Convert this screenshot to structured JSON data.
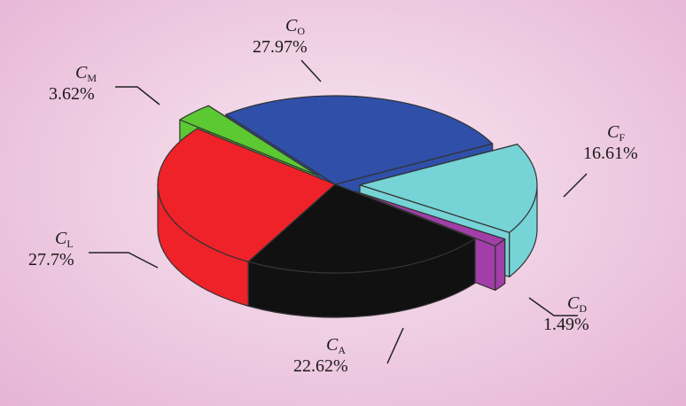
{
  "chart_data": {
    "type": "pie",
    "style": "3d-exploded",
    "title": "",
    "slices": [
      {
        "symbol": "C",
        "subscript": "O",
        "label": "27.97%",
        "value": 27.97,
        "color": "#2f4fa8",
        "exploded": false
      },
      {
        "symbol": "C",
        "subscript": "F",
        "label": "16.61%",
        "value": 16.61,
        "color": "#76d3d6",
        "exploded": true
      },
      {
        "symbol": "C",
        "subscript": "D",
        "label": "1.49%",
        "value": 1.49,
        "color": "#a23ea8",
        "exploded": true
      },
      {
        "symbol": "C",
        "subscript": "A",
        "label": "22.62%",
        "value": 22.62,
        "color": "#111111",
        "exploded": false
      },
      {
        "symbol": "C",
        "subscript": "L",
        "label": "27.7%",
        "value": 27.7,
        "color": "#ee2228",
        "exploded": false
      },
      {
        "symbol": "C",
        "subscript": "M",
        "label": "3.62%",
        "value": 3.62,
        "color": "#5cc832",
        "exploded": true
      }
    ],
    "legend": "none"
  }
}
